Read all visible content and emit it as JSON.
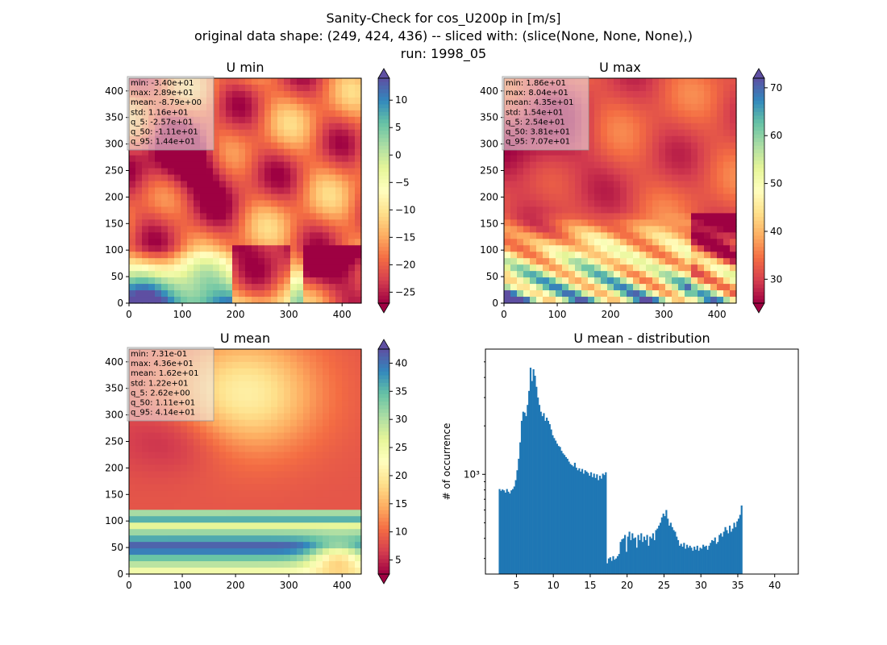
{
  "suptitle": {
    "line1": "Sanity-Check for cos_U200p in [m/s]",
    "line2": "original data shape: (249, 424, 436) -- sliced with: (slice(None, None, None),)",
    "line3": "run: 1998_05"
  },
  "chart_data": [
    {
      "type": "heatmap",
      "title": "U min",
      "xlim": [
        0,
        436
      ],
      "ylim": [
        0,
        424
      ],
      "xticks": [
        0,
        100,
        200,
        300,
        400
      ],
      "yticks": [
        0,
        50,
        100,
        150,
        200,
        250,
        300,
        350,
        400
      ],
      "colormap": "Spectral",
      "colorbar": {
        "vmin": -27,
        "vmax": 14,
        "ticks": [
          -25,
          -20,
          -15,
          -10,
          -5,
          0,
          5,
          10
        ]
      },
      "stats": [
        "min: -3.40e+01",
        "max: 2.89e+01",
        "mean: -8.79e+00",
        "std: 1.16e+01",
        "q_5: -2.57e+01",
        "q_50: -1.11e+01",
        "q_95: 1.44e+01"
      ]
    },
    {
      "type": "heatmap",
      "title": "U max",
      "xlim": [
        0,
        436
      ],
      "ylim": [
        0,
        424
      ],
      "xticks": [
        0,
        100,
        200,
        300,
        400
      ],
      "yticks": [
        0,
        50,
        100,
        150,
        200,
        250,
        300,
        350,
        400
      ],
      "colormap": "Spectral",
      "colorbar": {
        "vmin": 25,
        "vmax": 72,
        "ticks": [
          30,
          40,
          50,
          60,
          70
        ]
      },
      "stats": [
        "min: 1.86e+01",
        "max: 8.04e+01",
        "mean: 4.35e+01",
        "std: 1.54e+01",
        "q_5: 2.54e+01",
        "q_50: 3.81e+01",
        "q_95: 7.07e+01"
      ]
    },
    {
      "type": "heatmap",
      "title": "U mean",
      "xlim": [
        0,
        436
      ],
      "ylim": [
        0,
        424
      ],
      "xticks": [
        0,
        100,
        200,
        300,
        400
      ],
      "yticks": [
        0,
        50,
        100,
        150,
        200,
        250,
        300,
        350,
        400
      ],
      "colormap": "Spectral",
      "colorbar": {
        "vmin": 2.5,
        "vmax": 42.5,
        "ticks": [
          5,
          10,
          15,
          20,
          25,
          30,
          35,
          40
        ]
      },
      "stats": [
        "min: 7.31e-01",
        "max: 4.36e+01",
        "mean: 1.62e+01",
        "std: 1.22e+01",
        "q_5: 2.62e+00",
        "q_50: 1.11e+01",
        "q_95: 4.14e+01"
      ]
    },
    {
      "type": "bar",
      "title": "U mean - distribution",
      "xlabel": "",
      "ylabel": "# of occurrence",
      "yscale": "log",
      "xlim": [
        0.8,
        43.2
      ],
      "ylim": [
        240,
        6000
      ],
      "xticks": [
        5,
        10,
        15,
        20,
        25,
        30,
        35,
        40
      ],
      "yticks_labeled": [
        {
          "value": 1000,
          "label": "10³"
        }
      ],
      "color": "#1f77b4",
      "bins": {
        "start": 2.6,
        "width": 0.2
      },
      "values": [
        810,
        790,
        805,
        795,
        770,
        810,
        780,
        760,
        795,
        810,
        840,
        920,
        1060,
        1250,
        1580,
        2150,
        2450,
        2420,
        2300,
        2700,
        3300,
        4600,
        3800,
        4500,
        4100,
        3500,
        3000,
        2700,
        2450,
        2300,
        2400,
        2150,
        2250,
        2150,
        2050,
        1900,
        1750,
        1680,
        1620,
        1550,
        1500,
        1480,
        1400,
        1350,
        1320,
        1280,
        1250,
        1200,
        1160,
        1140,
        1120,
        1180,
        1100,
        1060,
        1090,
        1040,
        1080,
        1010,
        1060,
        1040,
        1020,
        980,
        1030,
        960,
        1010,
        950,
        1000,
        920,
        980,
        940,
        1010,
        990,
        1030,
        280,
        300,
        305,
        290,
        310,
        295,
        300,
        310,
        320,
        380,
        395,
        400,
        420,
        330,
        410,
        440,
        390,
        430,
        400,
        405,
        350,
        420,
        390,
        430,
        380,
        410,
        390,
        420,
        360,
        410,
        400,
        430,
        390,
        450,
        460,
        480,
        500,
        540,
        570,
        550,
        600,
        530,
        480,
        500,
        470,
        450,
        440,
        410,
        390,
        360,
        370,
        355,
        375,
        345,
        365,
        350,
        360,
        350,
        335,
        355,
        340,
        360,
        335,
        350,
        345,
        365,
        355,
        360,
        340,
        360,
        375,
        390,
        385,
        405,
        370,
        380,
        420,
        430,
        410,
        440,
        470,
        450,
        430,
        480,
        440,
        460,
        500,
        470,
        510,
        530,
        560,
        640
      ]
    }
  ]
}
